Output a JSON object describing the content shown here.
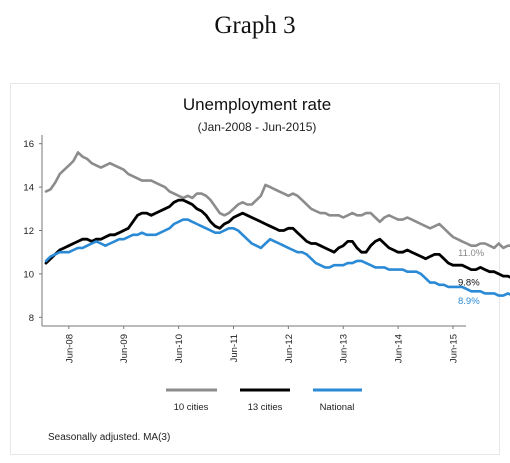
{
  "heading": "Graph 3",
  "footnote": "Seasonally adjusted. MA(3)",
  "colors": {
    "ten_cities": "#8c8c8c",
    "thirteen_cities": "#000000",
    "national": "#2b8ad6"
  },
  "chart_data": {
    "type": "line",
    "title": "Unemployment rate",
    "subtitle": "(Jan-2008 - Jun-2015)",
    "xlabel": "",
    "ylabel": "",
    "ylim": [
      7.6,
      16.4
    ],
    "yticks": [
      8,
      10,
      12,
      14,
      16
    ],
    "x_start": "Jan-2008",
    "x_end": "Jun-2015",
    "x_ticks": [
      "Jun-08",
      "Jun-09",
      "Jun-10",
      "Jun-11",
      "Jun-12",
      "Jun-13",
      "Jun-14",
      "Jun-15"
    ],
    "grid": false,
    "legend_position": "bottom",
    "series": [
      {
        "name": "10 cities",
        "color": "#8c8c8c",
        "end_label": "11.0%",
        "values": [
          13.8,
          13.9,
          14.2,
          14.6,
          14.8,
          15.0,
          15.2,
          15.6,
          15.4,
          15.3,
          15.1,
          15.0,
          14.9,
          15.0,
          15.1,
          15.0,
          14.9,
          14.8,
          14.6,
          14.5,
          14.4,
          14.3,
          14.3,
          14.3,
          14.2,
          14.1,
          14.0,
          13.8,
          13.7,
          13.6,
          13.5,
          13.6,
          13.5,
          13.7,
          13.7,
          13.6,
          13.4,
          13.1,
          12.8,
          12.7,
          12.8,
          13.0,
          13.2,
          13.3,
          13.2,
          13.2,
          13.4,
          13.6,
          14.1,
          14.0,
          13.9,
          13.8,
          13.7,
          13.6,
          13.7,
          13.6,
          13.4,
          13.2,
          13.0,
          12.9,
          12.8,
          12.8,
          12.7,
          12.7,
          12.7,
          12.6,
          12.7,
          12.8,
          12.7,
          12.7,
          12.8,
          12.8,
          12.6,
          12.4,
          12.6,
          12.7,
          12.6,
          12.5,
          12.5,
          12.6,
          12.5,
          12.4,
          12.3,
          12.2,
          12.1,
          12.2,
          12.3,
          12.1,
          11.9,
          11.7,
          11.6,
          11.5,
          11.4,
          11.3,
          11.3,
          11.4,
          11.4,
          11.3,
          11.2,
          11.4,
          11.2,
          11.3,
          11.3,
          11.2,
          11.1,
          11.3,
          11.2,
          11.1,
          11.2,
          11.1,
          11.2,
          11.0,
          11.0,
          11.1,
          11.0,
          11.0,
          11.0,
          11.1,
          11.0,
          11.0,
          11.0,
          11.0,
          11.0,
          11.0,
          11.0,
          11.0,
          11.0,
          11.0,
          11.0,
          11.0
        ]
      },
      {
        "name": "13 cities",
        "color": "#000000",
        "end_label": "9.8%",
        "values": [
          10.5,
          10.7,
          10.9,
          11.1,
          11.2,
          11.3,
          11.4,
          11.5,
          11.6,
          11.6,
          11.5,
          11.6,
          11.6,
          11.7,
          11.8,
          11.8,
          11.9,
          12.0,
          12.1,
          12.4,
          12.7,
          12.8,
          12.8,
          12.7,
          12.8,
          12.9,
          13.0,
          13.1,
          13.3,
          13.4,
          13.4,
          13.3,
          13.2,
          13.0,
          12.9,
          12.7,
          12.4,
          12.2,
          12.1,
          12.3,
          12.4,
          12.6,
          12.7,
          12.8,
          12.7,
          12.6,
          12.5,
          12.4,
          12.3,
          12.2,
          12.1,
          12.0,
          12.0,
          12.1,
          12.1,
          11.9,
          11.7,
          11.5,
          11.4,
          11.4,
          11.3,
          11.2,
          11.1,
          11.0,
          11.2,
          11.3,
          11.5,
          11.5,
          11.2,
          11.0,
          11.0,
          11.3,
          11.5,
          11.6,
          11.4,
          11.2,
          11.1,
          11.0,
          11.0,
          11.1,
          11.0,
          10.9,
          10.8,
          10.7,
          10.8,
          10.9,
          10.9,
          10.7,
          10.5,
          10.4,
          10.4,
          10.4,
          10.3,
          10.2,
          10.2,
          10.3,
          10.2,
          10.1,
          10.1,
          10.0,
          9.9,
          9.9,
          9.8,
          9.9,
          10.0,
          10.0,
          9.9,
          9.8,
          9.8,
          9.8,
          9.8,
          9.7,
          9.7,
          9.6,
          9.5,
          9.4,
          9.3,
          9.5,
          9.7,
          9.9,
          9.9,
          9.8,
          9.8,
          9.8,
          9.8,
          9.8,
          9.8,
          9.8,
          9.8,
          9.8,
          9.8,
          9.8
        ]
      },
      {
        "name": "National",
        "color": "#2b8ad6",
        "end_label": "8.9%",
        "values": [
          10.6,
          10.8,
          10.9,
          11.0,
          11.0,
          11.0,
          11.1,
          11.2,
          11.2,
          11.3,
          11.4,
          11.5,
          11.4,
          11.3,
          11.4,
          11.5,
          11.6,
          11.6,
          11.7,
          11.8,
          11.8,
          11.9,
          11.8,
          11.8,
          11.8,
          11.9,
          12.0,
          12.1,
          12.3,
          12.4,
          12.5,
          12.5,
          12.4,
          12.3,
          12.2,
          12.1,
          12.0,
          11.9,
          11.9,
          12.0,
          12.1,
          12.1,
          12.0,
          11.8,
          11.6,
          11.4,
          11.3,
          11.2,
          11.4,
          11.6,
          11.5,
          11.4,
          11.3,
          11.2,
          11.1,
          11.0,
          11.0,
          10.9,
          10.7,
          10.5,
          10.4,
          10.3,
          10.3,
          10.4,
          10.4,
          10.4,
          10.5,
          10.5,
          10.6,
          10.6,
          10.5,
          10.4,
          10.3,
          10.3,
          10.3,
          10.2,
          10.2,
          10.2,
          10.2,
          10.1,
          10.1,
          10.1,
          10.0,
          9.8,
          9.6,
          9.6,
          9.5,
          9.5,
          9.4,
          9.4,
          9.4,
          9.4,
          9.3,
          9.2,
          9.2,
          9.2,
          9.1,
          9.1,
          9.1,
          9.0,
          9.0,
          9.1,
          9.0,
          9.0,
          8.9,
          8.9,
          8.9,
          8.9,
          8.8,
          8.8,
          8.7,
          8.6,
          8.6,
          8.7,
          8.8,
          8.9,
          8.8,
          8.8,
          8.9,
          8.9,
          8.9,
          8.9,
          8.9,
          8.9,
          8.9,
          8.9,
          8.9,
          8.9,
          8.9,
          8.9
        ]
      }
    ]
  }
}
